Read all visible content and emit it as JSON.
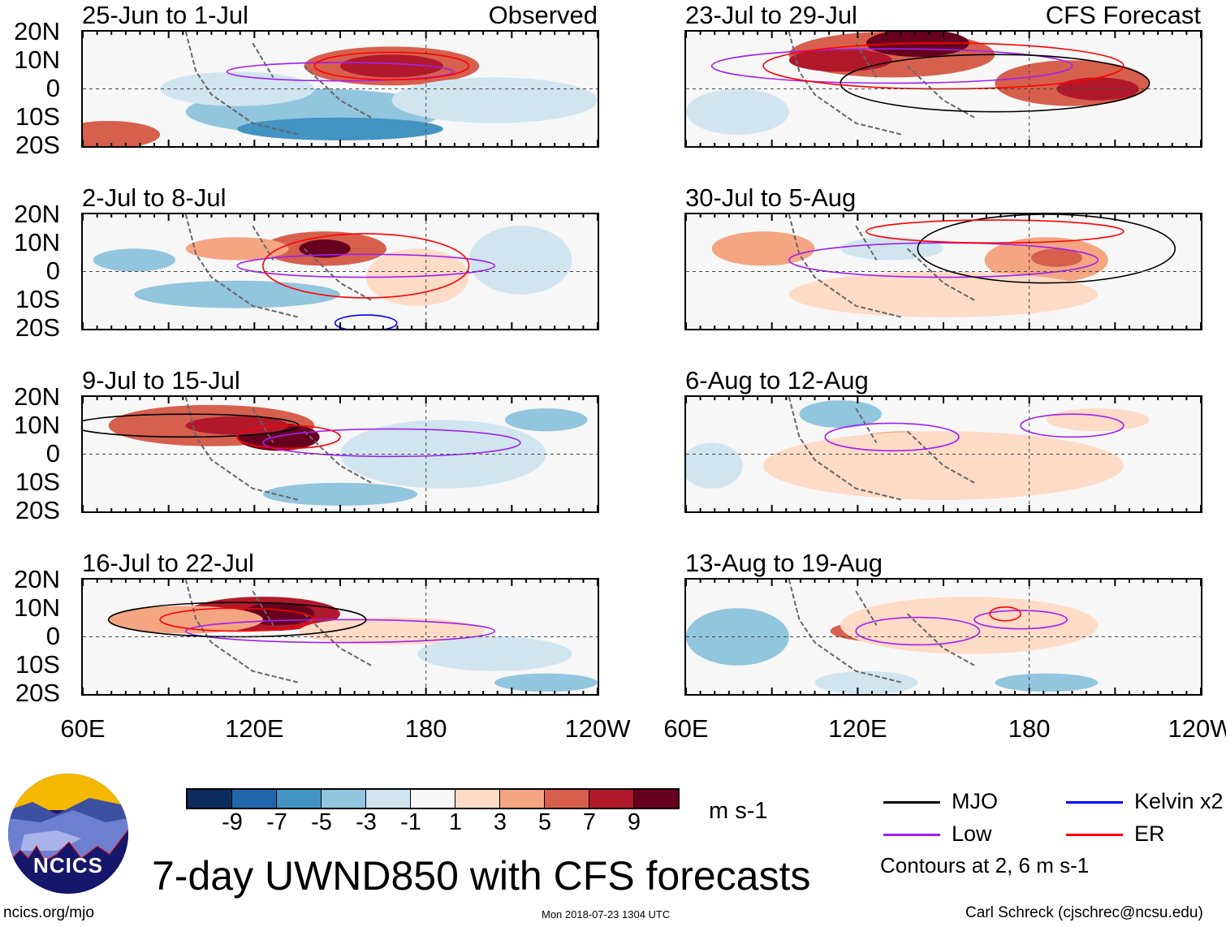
{
  "panels_left": [
    {
      "label": "25-Jun to 1-Jul",
      "corner": "Observed"
    },
    {
      "label": "2-Jul to 8-Jul",
      "corner": ""
    },
    {
      "label": "9-Jul to 15-Jul",
      "corner": ""
    },
    {
      "label": "16-Jul to 22-Jul",
      "corner": ""
    }
  ],
  "panels_right": [
    {
      "label": "23-Jul to 29-Jul",
      "corner": "CFS Forecast"
    },
    {
      "label": "30-Jul to 5-Aug",
      "corner": ""
    },
    {
      "label": "6-Aug to 12-Aug",
      "corner": ""
    },
    {
      "label": "13-Aug to 19-Aug",
      "corner": ""
    }
  ],
  "lat_labels": [
    "20N",
    "10N",
    "0",
    "10S",
    "20S"
  ],
  "lon_labels": [
    "60E",
    "120E",
    "180",
    "120W"
  ],
  "colorbar": {
    "colors": [
      "#0b2c5c",
      "#2166ac",
      "#4393c3",
      "#92c5de",
      "#d1e5f0",
      "#f7f7f7",
      "#fddbc7",
      "#f4a582",
      "#d6604d",
      "#b2182b",
      "#67001f"
    ],
    "ticks": [
      "-9",
      "-7",
      "-5",
      "-3",
      "-1",
      "1",
      "3",
      "5",
      "7",
      "9"
    ],
    "units": "m s-1"
  },
  "legend": {
    "items": [
      {
        "label": "MJO",
        "color": "#000000"
      },
      {
        "label": "Kelvin x2",
        "color": "#0000ff"
      },
      {
        "label": "Low",
        "color": "#a020f0"
      },
      {
        "label": "ER",
        "color": "#ff0000"
      }
    ],
    "note": "Contours at 2, 6 m s-1"
  },
  "logo_text": "NCICS",
  "title": "7-day UWND850 with CFS forecasts",
  "footer": {
    "left": "ncics.org/mjo",
    "center": "Mon 2018-07-23 1304 UTC",
    "right": "Carl Schreck (cjschrec@ncsu.edu)"
  }
}
